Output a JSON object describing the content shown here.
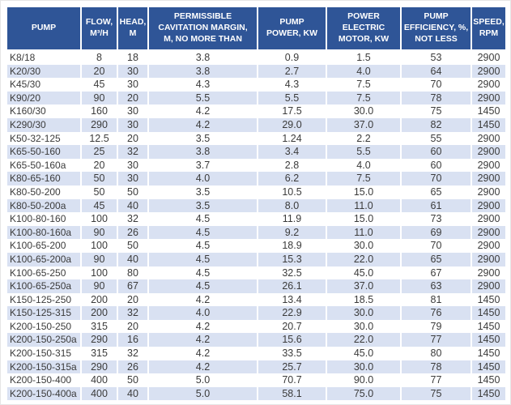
{
  "chart_data": {
    "type": "table",
    "title": "",
    "columns": [
      {
        "id": "pump",
        "label": "PUMP"
      },
      {
        "id": "flow",
        "label": "FLOW,\nM³/H"
      },
      {
        "id": "head",
        "label": "HEAD,\nM"
      },
      {
        "id": "cavitation_margin",
        "label": "PERMISSIBLE\nCAVITATION MARGIN,\nM, NO MORE THAN"
      },
      {
        "id": "pump_power",
        "label": "PUMP\nPOWER, KW"
      },
      {
        "id": "motor_power",
        "label": "POWER\nELECTRIC\nMOTOR, KW"
      },
      {
        "id": "efficiency",
        "label": "PUMP\nEFFICIENCY, %,\nNOT LESS"
      },
      {
        "id": "speed",
        "label": "SPEED,\nRPM"
      }
    ],
    "rows": [
      [
        "K8/18",
        "8",
        "18",
        "3.8",
        "0.9",
        "1.5",
        "53",
        "2900"
      ],
      [
        "K20/30",
        "20",
        "30",
        "3.8",
        "2.7",
        "4.0",
        "64",
        "2900"
      ],
      [
        "K45/30",
        "45",
        "30",
        "4.3",
        "4.3",
        "7.5",
        "70",
        "2900"
      ],
      [
        "K90/20",
        "90",
        "20",
        "5.5",
        "5.5",
        "7.5",
        "78",
        "2900"
      ],
      [
        "K160/30",
        "160",
        "30",
        "4.2",
        "17.5",
        "30.0",
        "75",
        "1450"
      ],
      [
        "K290/30",
        "290",
        "30",
        "4.2",
        "29.0",
        "37.0",
        "82",
        "1450"
      ],
      [
        "K50-32-125",
        "12.5",
        "20",
        "3.5",
        "1.24",
        "2.2",
        "55",
        "2900"
      ],
      [
        "K65-50-160",
        "25",
        "32",
        "3.8",
        "3.4",
        "5.5",
        "60",
        "2900"
      ],
      [
        "K65-50-160a",
        "20",
        "30",
        "3.7",
        "2.8",
        "4.0",
        "60",
        "2900"
      ],
      [
        "K80-65-160",
        "50",
        "30",
        "4.0",
        "6.2",
        "7.5",
        "70",
        "2900"
      ],
      [
        "K80-50-200",
        "50",
        "50",
        "3.5",
        "10.5",
        "15.0",
        "65",
        "2900"
      ],
      [
        "K80-50-200a",
        "45",
        "40",
        "3.5",
        "8.0",
        "11.0",
        "61",
        "2900"
      ],
      [
        "K100-80-160",
        "100",
        "32",
        "4.5",
        "11.9",
        "15.0",
        "73",
        "2900"
      ],
      [
        "K100-80-160a",
        "90",
        "26",
        "4.5",
        "9.2",
        "11.0",
        "69",
        "2900"
      ],
      [
        "K100-65-200",
        "100",
        "50",
        "4.5",
        "18.9",
        "30.0",
        "70",
        "2900"
      ],
      [
        "K100-65-200a",
        "90",
        "40",
        "4.5",
        "15.3",
        "22.0",
        "65",
        "2900"
      ],
      [
        "K100-65-250",
        "100",
        "80",
        "4.5",
        "32.5",
        "45.0",
        "67",
        "2900"
      ],
      [
        "K100-65-250a",
        "90",
        "67",
        "4.5",
        "26.1",
        "37.0",
        "63",
        "2900"
      ],
      [
        "K150-125-250",
        "200",
        "20",
        "4.2",
        "13.4",
        "18.5",
        "81",
        "1450"
      ],
      [
        "K150-125-315",
        "200",
        "32",
        "4.0",
        "22.9",
        "30.0",
        "76",
        "1450"
      ],
      [
        "K200-150-250",
        "315",
        "20",
        "4.2",
        "20.7",
        "30.0",
        "79",
        "1450"
      ],
      [
        "K200-150-250a",
        "290",
        "16",
        "4.2",
        "15.6",
        "22.0",
        "77",
        "1450"
      ],
      [
        "K200-150-315",
        "315",
        "32",
        "4.2",
        "33.5",
        "45.0",
        "80",
        "1450"
      ],
      [
        "K200-150-315a",
        "290",
        "26",
        "4.2",
        "25.7",
        "30.0",
        "78",
        "1450"
      ],
      [
        "K200-150-400",
        "400",
        "50",
        "5.0",
        "70.7",
        "90.0",
        "77",
        "1450"
      ],
      [
        "K200-150-400a",
        "400",
        "40",
        "5.0",
        "58.1",
        "75.0",
        "75",
        "1450"
      ]
    ],
    "layout_hints": {
      "header_rows": 1,
      "zebra_striping": true,
      "first_data_row_background": "white"
    }
  },
  "colors": {
    "header_bg": "#2F5597",
    "header_text": "#FFFFFF",
    "row_bg": "#FFFFFF",
    "row_alt_bg": "#D9E1F2",
    "cell_text": "#3B3B3B"
  }
}
